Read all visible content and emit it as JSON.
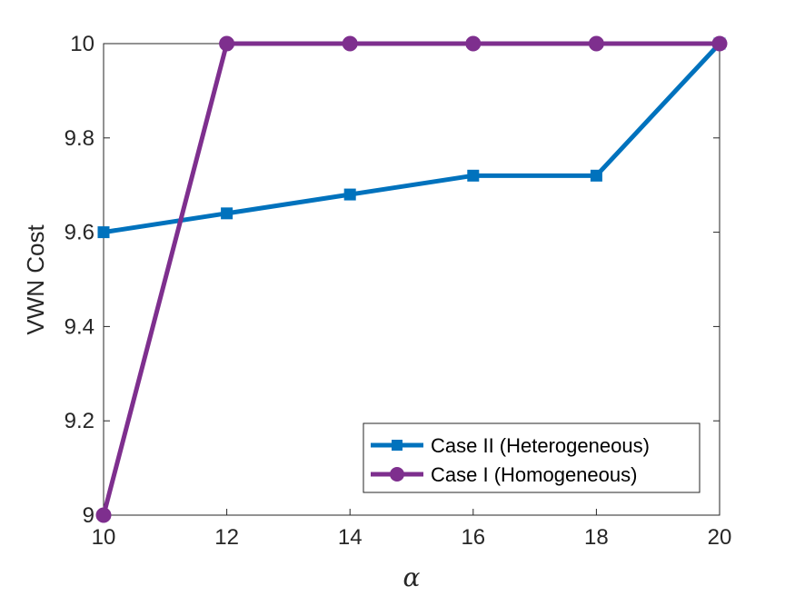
{
  "chart_data": {
    "type": "line",
    "xlabel": "α",
    "ylabel": "VWN Cost",
    "xlim": [
      10,
      20
    ],
    "ylim": [
      9,
      10
    ],
    "xticks": [
      "10",
      "12",
      "14",
      "16",
      "18",
      "20"
    ],
    "yticks": [
      "9",
      "9.2",
      "9.4",
      "9.6",
      "9.8",
      "10"
    ],
    "grid": false,
    "legend_position": "bottom-right",
    "series": [
      {
        "name": "Case II (Heterogeneous)",
        "color": "#0072BD",
        "marker": "square",
        "x": [
          10,
          12,
          14,
          16,
          18,
          20
        ],
        "y": [
          9.6,
          9.64,
          9.68,
          9.72,
          9.72,
          10
        ]
      },
      {
        "name": "Case I (Homogeneous)",
        "color": "#7E2F8E",
        "marker": "circle",
        "x": [
          10,
          12,
          14,
          16,
          18,
          20
        ],
        "y": [
          9.0,
          10,
          10,
          10,
          10,
          10
        ]
      }
    ]
  }
}
